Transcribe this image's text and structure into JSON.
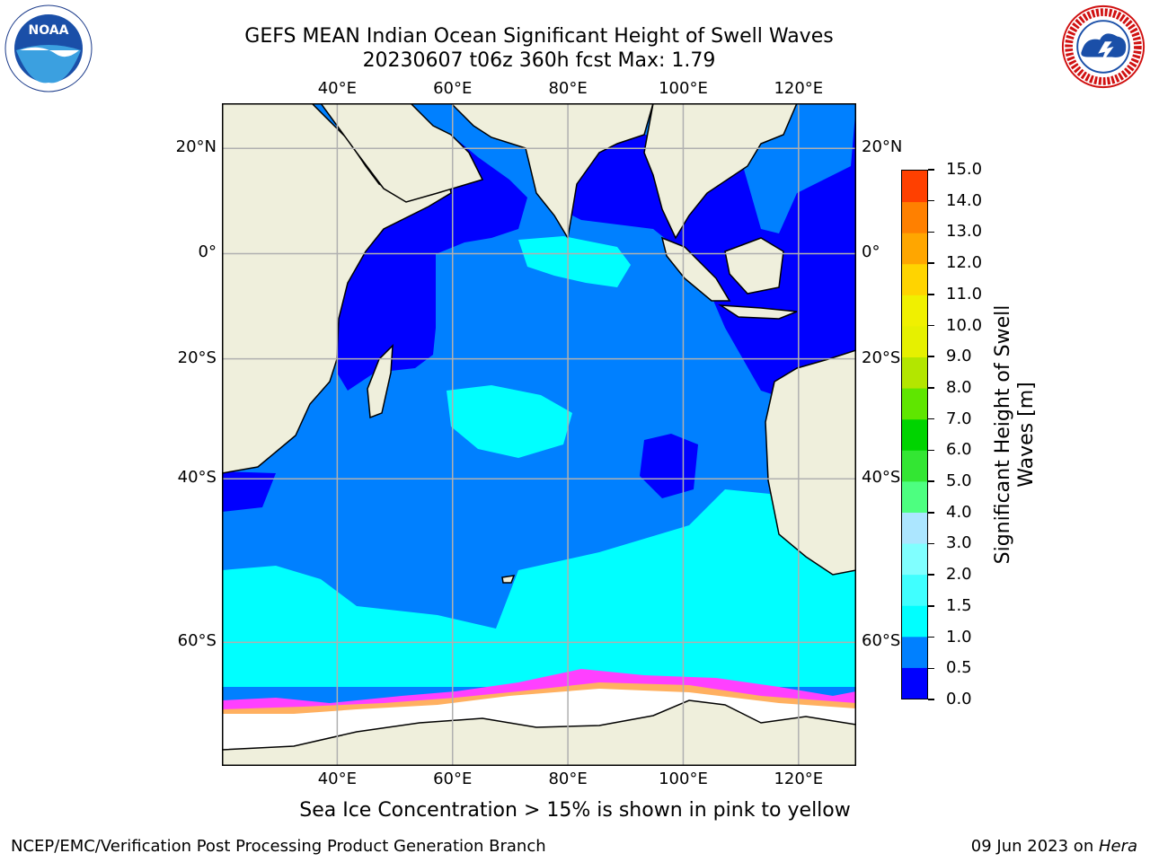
{
  "title_line1": "GEFS MEAN Indian Ocean Significant Height of Swell Waves",
  "title_line2": "20230607 t06z 360h fcst   Max: 1.79",
  "x_ticks": [
    {
      "lon": 40,
      "label": "40°E"
    },
    {
      "lon": 60,
      "label": "60°E"
    },
    {
      "lon": 80,
      "label": "80°E"
    },
    {
      "lon": 100,
      "label": "100°E"
    },
    {
      "lon": 120,
      "label": "120°E"
    }
  ],
  "y_ticks": [
    {
      "lat": 20,
      "label": "20°N"
    },
    {
      "lat": 0,
      "label": "0°"
    },
    {
      "lat": -20,
      "label": "20°S"
    },
    {
      "lat": -40,
      "label": "40°S"
    },
    {
      "lat": -60,
      "label": "60°S"
    }
  ],
  "map_extent": {
    "lon_min": 20,
    "lon_max": 130,
    "lat_min": -70,
    "lat_max": 28
  },
  "colorbar": {
    "title_line1": "Significant Height of Swell",
    "title_line2": "Waves [m]",
    "levels": [
      "0.0",
      "0.5",
      "1.0",
      "1.5",
      "2.0",
      "3.0",
      "4.0",
      "5.0",
      "6.0",
      "7.0",
      "8.0",
      "9.0",
      "10.0",
      "11.0",
      "12.0",
      "13.0",
      "14.0",
      "15.0"
    ],
    "colors": [
      "#0000ff",
      "#0080ff",
      "#00ffff",
      "#40ffff",
      "#80ffff",
      "#ace6ff",
      "#4dff80",
      "#33e633",
      "#00d400",
      "#5fe600",
      "#b3e600",
      "#e6f000",
      "#f0f000",
      "#ffd400",
      "#ffa600",
      "#ff8000",
      "#ff4000",
      "#ff0000"
    ]
  },
  "map_colors": {
    "land": "#efefdc",
    "ice": "#ffffff",
    "deep_blue": "#0000ff",
    "mid_blue": "#0080ff",
    "cyan": "#00ffff",
    "ice_edge_pink": "#ff40ff",
    "ice_edge_orange": "#ffb060"
  },
  "note": "Sea Ice Concentration > 15% is shown in pink to yellow",
  "footer_left": "NCEP/EMC/Verification Post Processing Product Generation Branch",
  "footer_right_date": "09 Jun 2023 on ",
  "footer_right_host": "Hera",
  "logos": {
    "left": "noaa-logo",
    "right": "national-weather-service-logo",
    "noaa_text": "NOAA",
    "nws_text": "NATIONAL WEATHER SERVICE"
  }
}
